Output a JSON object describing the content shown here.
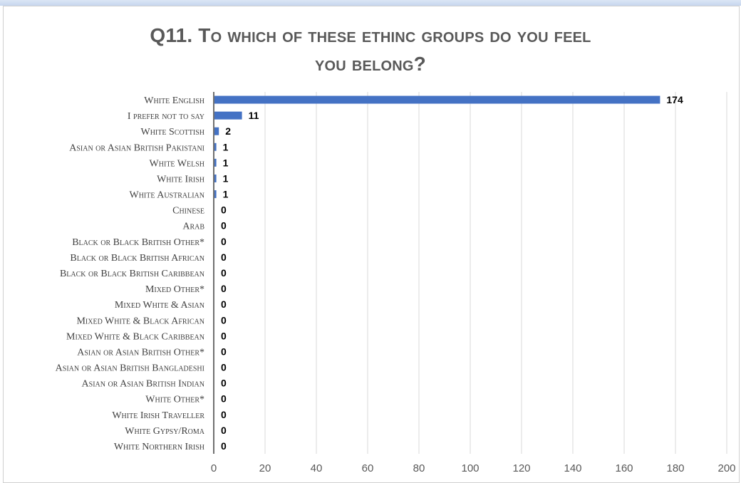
{
  "title_line1": "Q11. To which of these ethinc groups do you feel",
  "title_line2": "you belong?",
  "colors": {
    "bar": "#4472c4",
    "grid": "#d9d9d9",
    "axis": "#404040",
    "label": "#404040",
    "title": "#595959"
  },
  "chart_data": {
    "type": "bar",
    "orientation": "horizontal",
    "title": "Q11. To which of these ethinc groups do you feel you belong?",
    "categories": [
      "White English",
      "I prefer not to say",
      "White Scottish",
      "Asian or Asian British Pakistani",
      "White Welsh",
      "White Irish",
      "White Australian",
      "Chinese",
      "Arab",
      "Black or Black British Other*",
      "Black or Black British African",
      "Black or Black British Caribbean",
      "Mixed Other*",
      "Mixed White & Asian",
      "Mixed White & Black African",
      "Mixed White & Black Caribbean",
      "Asian or Asian British Other*",
      "Asian or Asian British Bangladeshi",
      "Asian or Asian British Indian",
      "White Other*",
      "White Irish Traveller",
      "White Gypsy/Roma",
      "White Northern Irish"
    ],
    "values": [
      174,
      11,
      2,
      1,
      1,
      1,
      1,
      0,
      0,
      0,
      0,
      0,
      0,
      0,
      0,
      0,
      0,
      0,
      0,
      0,
      0,
      0,
      0
    ],
    "xlim": [
      0,
      200
    ],
    "xticks": [
      0,
      20,
      40,
      60,
      80,
      100,
      120,
      140,
      160,
      180,
      200
    ],
    "data_labels": true,
    "grid": "vertical"
  }
}
